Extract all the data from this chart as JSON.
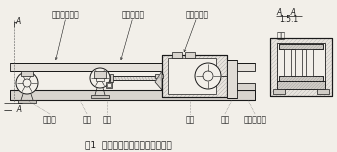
{
  "title": "图1  中间罐车横向微调机构示意图",
  "top_label1": "压轴支承滑座",
  "top_label2": "滚叶轴承座",
  "top_label3": "蜗轮蜗旋器",
  "bottom_label1": "中间罐",
  "bottom_label2": "蜗轮",
  "bottom_label3": "丝杠",
  "bottom_label4": "横架",
  "bottom_label5": "支座",
  "bottom_label6": "径向球轴承",
  "section_label_top": "A    A",
  "section_label_bot": "1.5.1",
  "detail_label": "钩挡",
  "bg_color": "#f2efe9",
  "lc": "#1a1a1a",
  "title_fs": 6.5,
  "label_fs": 5.5
}
